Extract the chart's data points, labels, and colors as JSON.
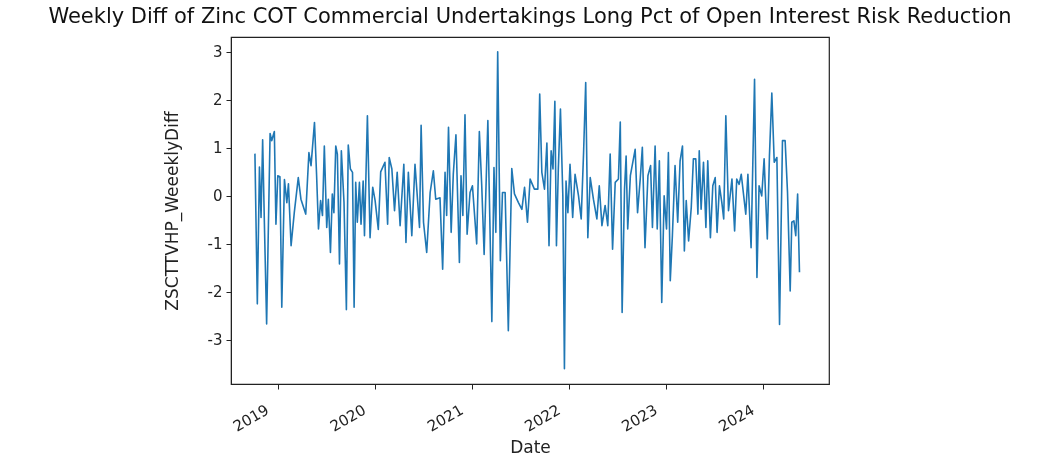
{
  "chart_data": {
    "type": "line",
    "title": "Weekly Diff of Zinc COT Commercial Undertakings Long Pct of Open Interest Risk Reduction",
    "xlabel": "Date",
    "ylabel": "ZSCTTVHP_WeeeklyDiff",
    "x": [
      "2018-10-08",
      "2018-10-17",
      "2018-10-25",
      "2018-10-31",
      "2018-11-06",
      "2018-11-12",
      "2018-11-21",
      "2018-12-04",
      "2018-12-10",
      "2018-12-20",
      "2018-12-26",
      "2019-01-02",
      "2019-01-10",
      "2019-01-17",
      "2019-01-27",
      "2019-02-05",
      "2019-02-11",
      "2019-02-21",
      "2019-03-05",
      "2019-03-20",
      "2019-03-30",
      "2019-04-17",
      "2019-04-29",
      "2019-05-07",
      "2019-05-20",
      "2019-05-28",
      "2019-06-04",
      "2019-06-12",
      "2019-06-19",
      "2019-06-26",
      "2019-07-05",
      "2019-07-11",
      "2019-07-19",
      "2019-07-26",
      "2019-08-01",
      "2019-08-08",
      "2019-08-14",
      "2019-08-22",
      "2019-08-29",
      "2019-09-08",
      "2019-09-17",
      "2019-09-24",
      "2019-10-02",
      "2019-10-10",
      "2019-10-16",
      "2019-10-22",
      "2019-10-28",
      "2019-11-05",
      "2019-11-11",
      "2019-11-19",
      "2019-11-24",
      "2019-12-05",
      "2019-12-15",
      "2019-12-25",
      "2020-01-03",
      "2020-01-15",
      "2020-01-24",
      "2020-02-09",
      "2020-02-19",
      "2020-02-25",
      "2020-03-06",
      "2020-03-16",
      "2020-03-26",
      "2020-04-06",
      "2020-04-20",
      "2020-04-28",
      "2020-05-07",
      "2020-05-20",
      "2020-06-01",
      "2020-06-18",
      "2020-06-24",
      "2020-07-03",
      "2020-07-15",
      "2020-07-28",
      "2020-08-09",
      "2020-08-18",
      "2020-09-03",
      "2020-09-13",
      "2020-09-22",
      "2020-09-28",
      "2020-10-05",
      "2020-10-15",
      "2020-10-23",
      "2020-11-02",
      "2020-11-15",
      "2020-11-21",
      "2020-11-28",
      "2020-12-06",
      "2020-12-14",
      "2020-12-25",
      "2021-01-03",
      "2021-01-19",
      "2021-01-29",
      "2021-02-07",
      "2021-02-16",
      "2021-03-02",
      "2021-03-17",
      "2021-03-25",
      "2021-04-01",
      "2021-04-08",
      "2021-04-18",
      "2021-04-26",
      "2021-05-06",
      "2021-05-18",
      "2021-05-31",
      "2021-06-10",
      "2021-06-25",
      "2021-07-08",
      "2021-07-18",
      "2021-07-29",
      "2021-08-08",
      "2021-08-24",
      "2021-09-06",
      "2021-09-13",
      "2021-09-21",
      "2021-10-01",
      "2021-10-10",
      "2021-10-18",
      "2021-10-26",
      "2021-11-02",
      "2021-11-09",
      "2021-11-15",
      "2021-11-22",
      "2021-11-30",
      "2021-12-09",
      "2021-12-15",
      "2021-12-21",
      "2021-12-28",
      "2022-01-05",
      "2022-01-15",
      "2022-01-24",
      "2022-02-06",
      "2022-02-16",
      "2022-02-25",
      "2022-03-05",
      "2022-03-13",
      "2022-03-22",
      "2022-04-03",
      "2022-04-16",
      "2022-04-25",
      "2022-05-05",
      "2022-05-17",
      "2022-05-27",
      "2022-06-05",
      "2022-06-14",
      "2022-06-24",
      "2022-07-06",
      "2022-07-13",
      "2022-07-20",
      "2022-07-29",
      "2022-08-04",
      "2022-08-10",
      "2022-08-20",
      "2022-09-07",
      "2022-09-16",
      "2022-09-26",
      "2022-10-04",
      "2022-10-14",
      "2022-10-25",
      "2022-11-04",
      "2022-11-11",
      "2022-11-21",
      "2022-11-29",
      "2022-12-07",
      "2022-12-16",
      "2022-12-25",
      "2023-01-03",
      "2023-01-10",
      "2023-01-17",
      "2023-01-25",
      "2023-02-04",
      "2023-02-14",
      "2023-02-23",
      "2023-03-04",
      "2023-03-11",
      "2023-03-18",
      "2023-03-27",
      "2023-04-06",
      "2023-04-14",
      "2023-04-23",
      "2023-05-01",
      "2023-05-06",
      "2023-05-13",
      "2023-05-22",
      "2023-05-31",
      "2023-06-07",
      "2023-06-17",
      "2023-06-26",
      "2023-07-05",
      "2023-07-12",
      "2023-07-21",
      "2023-07-30",
      "2023-08-06",
      "2023-08-14",
      "2023-08-24",
      "2023-09-06",
      "2023-09-16",
      "2023-09-24",
      "2023-10-03",
      "2023-10-11",
      "2023-10-28",
      "2023-11-05",
      "2023-11-17",
      "2023-11-30",
      "2023-12-09",
      "2023-12-17",
      "2023-12-27",
      "2024-01-05",
      "2024-01-17",
      "2024-01-25",
      "2024-02-03",
      "2024-02-12",
      "2024-02-22",
      "2024-03-03",
      "2024-03-14",
      "2024-03-24",
      "2024-04-02",
      "2024-04-12",
      "2024-04-18",
      "2024-04-26",
      "2024-05-03",
      "2024-05-10",
      "2024-05-17"
    ],
    "series": [
      {
        "color": "#1f77b4",
        "values": [
          0.88,
          -2.25,
          0.6,
          -0.45,
          1.17,
          -0.42,
          -2.67,
          1.3,
          1.15,
          1.34,
          -0.59,
          0.42,
          0.4,
          -2.32,
          0.34,
          -0.14,
          0.25,
          -1.04,
          -0.35,
          0.38,
          -0.07,
          -0.38,
          0.9,
          0.63,
          1.53,
          0.42,
          -0.69,
          -0.1,
          -0.41,
          1.04,
          -0.66,
          -0.07,
          -1.18,
          0.04,
          -0.35,
          1.04,
          0.87,
          -1.42,
          0.94,
          -0.14,
          -2.37,
          1.06,
          0.56,
          0.49,
          -2.32,
          0.28,
          -0.55,
          0.28,
          -0.59,
          0.31,
          -0.83,
          1.67,
          -0.87,
          0.18,
          -0.1,
          -0.7,
          0.5,
          0.7,
          -0.59,
          0.8,
          0.56,
          -0.31,
          0.49,
          -0.62,
          0.66,
          -0.97,
          0.49,
          -0.83,
          0.66,
          -0.66,
          1.47,
          -0.55,
          -1.18,
          0.07,
          0.52,
          -0.07,
          -0.04,
          -1.53,
          0.49,
          -0.41,
          1.43,
          -0.76,
          0.45,
          1.27,
          -1.39,
          0.42,
          -0.41,
          1.69,
          -0.8,
          0.07,
          0.21,
          -1.0,
          1.34,
          0.21,
          -1.22,
          1.57,
          -2.62,
          0.59,
          -0.76,
          3.0,
          -1.35,
          0.07,
          0.07,
          -2.81,
          0.57,
          0.04,
          -0.14,
          -0.28,
          0.18,
          -0.55,
          0.35,
          0.14,
          0.14,
          2.12,
          0.49,
          0.14,
          1.1,
          -1.04,
          0.94,
          0.56,
          1.97,
          -1.04,
          0.56,
          1.81,
          0.0,
          -3.6,
          0.31,
          -0.35,
          0.66,
          -0.45,
          0.45,
          0.0,
          -0.48,
          0.9,
          2.36,
          -0.87,
          0.38,
          -0.07,
          -0.48,
          0.21,
          -0.62,
          -0.2,
          -0.62,
          0.87,
          -1.11,
          0.28,
          0.35,
          1.54,
          -2.43,
          0.14,
          0.83,
          -0.69,
          0.42,
          0.97,
          -0.35,
          0.35,
          1.01,
          -1.08,
          0.42,
          0.63,
          -0.66,
          1.04,
          -0.69,
          0.73,
          -2.22,
          0.0,
          -0.69,
          0.9,
          -1.77,
          -0.83,
          0.63,
          -0.55,
          0.73,
          1.04,
          -1.15,
          -0.1,
          -0.94,
          -0.24,
          0.77,
          0.77,
          -0.38,
          0.94,
          -0.28,
          0.7,
          -0.66,
          0.73,
          -0.87,
          0.21,
          0.38,
          -0.76,
          0.21,
          -0.14,
          -0.48,
          1.67,
          -0.31,
          0.35,
          -0.73,
          0.35,
          0.24,
          0.45,
          -0.38,
          0.45,
          -1.08,
          2.43,
          -1.7,
          0.21,
          0.0,
          0.77,
          -0.9,
          0.83,
          2.14,
          0.7,
          0.8,
          -2.68,
          1.15,
          1.15,
          0.07,
          -1.98,
          -0.55,
          -0.52,
          -0.83,
          0.04,
          -1.59
        ]
      }
    ],
    "xlim": [
      "2018-07-10",
      "2024-09-05"
    ],
    "xticks": [
      "2019",
      "2020",
      "2021",
      "2022",
      "2023",
      "2024"
    ],
    "ylim": [
      -3.92,
      3.31
    ],
    "yticks": [
      -3,
      -2,
      -1,
      0,
      1,
      2,
      3
    ],
    "grid": false,
    "legend": false,
    "marker": "none",
    "line_style": "solid"
  }
}
